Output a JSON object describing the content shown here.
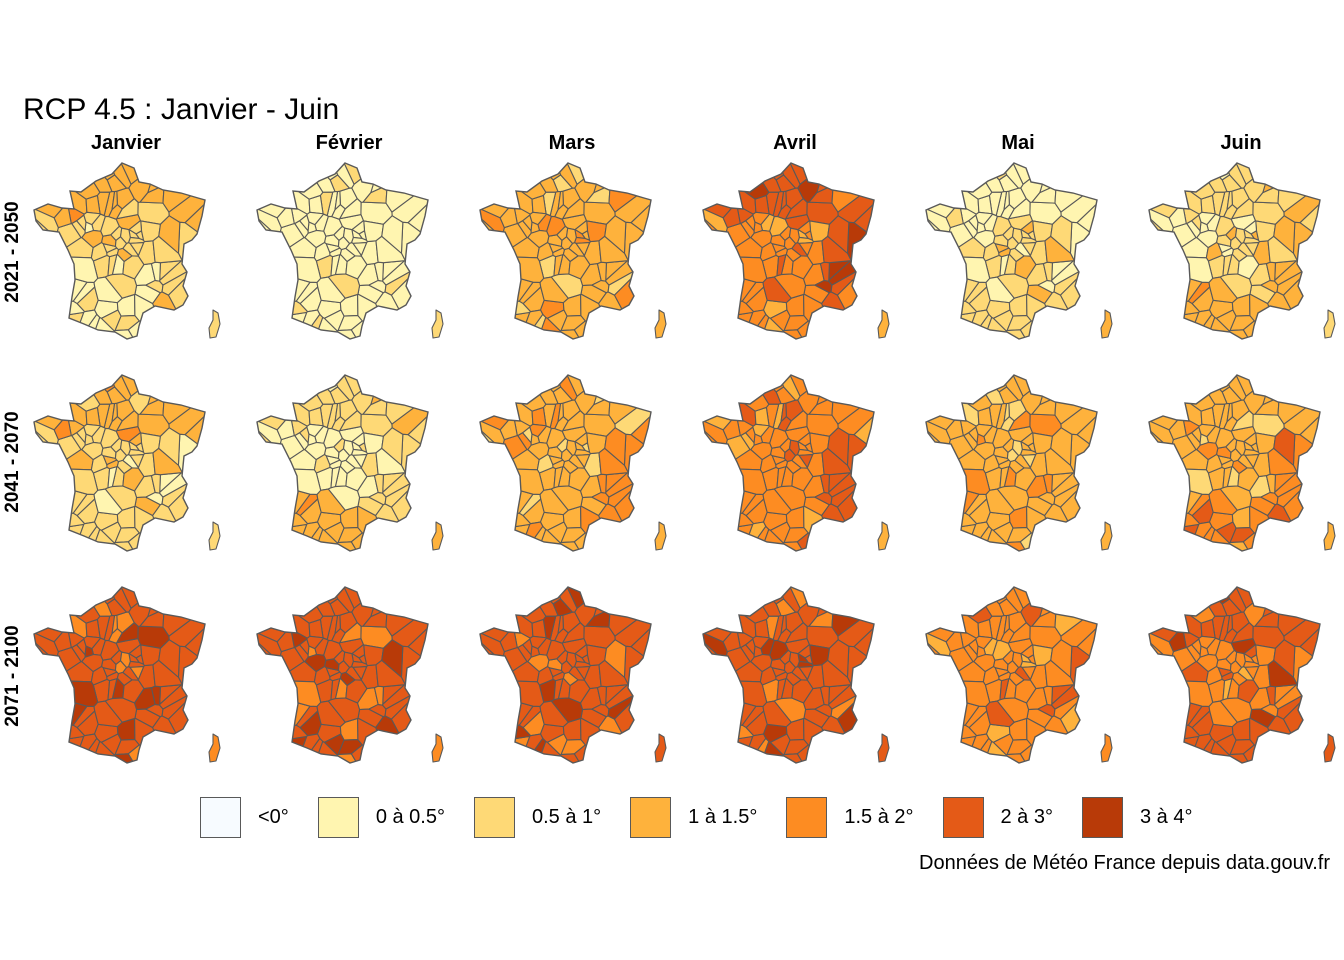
{
  "title": "RCP 4.5 : Janvier - Juin",
  "columns": [
    "Janvier",
    "Février",
    "Mars",
    "Avril",
    "Mai",
    "Juin"
  ],
  "rows": [
    "2021 - 2050",
    "2041 - 2070",
    "2071 - 2100"
  ],
  "legend": [
    {
      "label": "<0°",
      "color": "#f7fbff"
    },
    {
      "label": "0 à 0.5°",
      "color": "#fff5b0"
    },
    {
      "label": "0.5 à 1°",
      "color": "#fed976"
    },
    {
      "label": "1 à 1.5°",
      "color": "#feb23c"
    },
    {
      "label": "1.5 à 2°",
      "color": "#fd8c22"
    },
    {
      "label": "2 à 3°",
      "color": "#e45a17"
    },
    {
      "label": "3 à 4°",
      "color": "#b83a08"
    }
  ],
  "panels": [
    [
      {
        "base": 2,
        "north": 3,
        "east": 2,
        "west": 2,
        "south": 1,
        "corsica": 2
      },
      {
        "base": 1,
        "north": 1,
        "east": 1,
        "west": 1,
        "south": 1,
        "corsica": 2
      },
      {
        "base": 3,
        "north": 3,
        "east": 3,
        "west": 3,
        "south": 3,
        "corsica": 3
      },
      {
        "base": 4,
        "north": 5,
        "east": 5,
        "west": 4,
        "south": 4,
        "corsica": 3
      },
      {
        "base": 2,
        "north": 1,
        "east": 2,
        "west": 1,
        "south": 2,
        "corsica": 3
      },
      {
        "base": 2,
        "north": 2,
        "east": 3,
        "west": 1,
        "south": 3,
        "corsica": 2
      }
    ],
    [
      {
        "base": 2,
        "north": 3,
        "east": 2,
        "west": 2,
        "south": 2,
        "corsica": 2
      },
      {
        "base": 1,
        "north": 2,
        "east": 2,
        "west": 1,
        "south": 3,
        "corsica": 3
      },
      {
        "base": 3,
        "north": 3,
        "east": 4,
        "west": 3,
        "south": 3,
        "corsica": 3
      },
      {
        "base": 4,
        "north": 4,
        "east": 5,
        "west": 4,
        "south": 4,
        "corsica": 3
      },
      {
        "base": 3,
        "north": 3,
        "east": 3,
        "west": 3,
        "south": 3,
        "corsica": 3
      },
      {
        "base": 3,
        "north": 3,
        "east": 4,
        "west": 3,
        "south": 4,
        "corsica": 3
      }
    ],
    [
      {
        "base": 5,
        "north": 5,
        "east": 5,
        "west": 5,
        "south": 5,
        "corsica": 4
      },
      {
        "base": 5,
        "north": 5,
        "east": 5,
        "west": 5,
        "south": 5,
        "corsica": 4
      },
      {
        "base": 5,
        "north": 5,
        "east": 5,
        "west": 5,
        "south": 5,
        "corsica": 5
      },
      {
        "base": 5,
        "north": 5,
        "east": 5,
        "west": 5,
        "south": 5,
        "corsica": 5
      },
      {
        "base": 4,
        "north": 4,
        "east": 4,
        "west": 4,
        "south": 4,
        "corsica": 4
      },
      {
        "base": 4,
        "north": 5,
        "east": 5,
        "west": 4,
        "south": 5,
        "corsica": 5
      }
    ]
  ],
  "caption": "Données de Météo France depuis data.gouv.fr"
}
